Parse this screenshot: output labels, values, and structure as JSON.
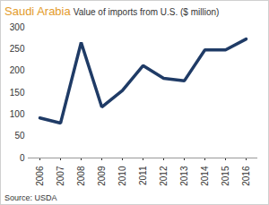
{
  "chart_data": {
    "type": "line",
    "title": "Saudi Arabia",
    "subtitle": "Value of imports from U.S. ($ million)",
    "caption": "Source: USDA",
    "categories": [
      "2006",
      "2007",
      "2008",
      "2009",
      "2010",
      "2011",
      "2012",
      "2013",
      "2014",
      "2015",
      "2016"
    ],
    "values": [
      92,
      80,
      265,
      117,
      155,
      212,
      183,
      177,
      248,
      248,
      273
    ],
    "color": "#1f3b66",
    "ylim": [
      0,
      300
    ],
    "yticks": [
      0,
      50,
      100,
      150,
      200,
      250,
      300
    ],
    "grid": false
  }
}
